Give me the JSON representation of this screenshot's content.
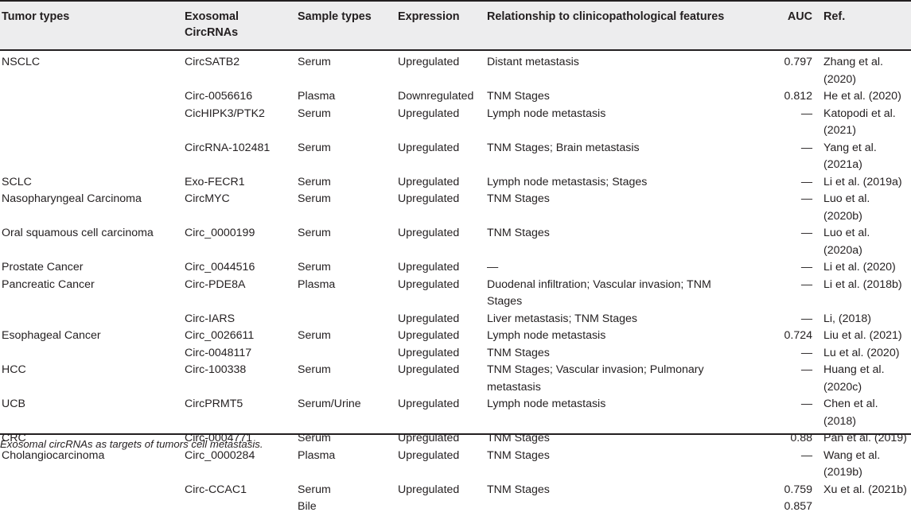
{
  "headers": {
    "tumor_types": "Tumor types",
    "exosomal_circrnas": "Exosomal CircRNAs",
    "sample_types": "Sample types",
    "expression": "Expression",
    "relationship": "Relationship to clinicopathological features",
    "auc": "AUC",
    "ref": "Ref."
  },
  "rows": [
    {
      "tumor": "NSCLC",
      "circ": "CircSATB2",
      "sample": "Serum",
      "expr": "Upregulated",
      "rel": "Distant metastasis",
      "auc": "0.797",
      "ref": "Zhang et al. (2020)"
    },
    {
      "tumor": "",
      "circ": "Circ-0056616",
      "sample": "Plasma",
      "expr": "Downregulated",
      "rel": "TNM Stages",
      "auc": "0.812",
      "ref": "He et al. (2020)"
    },
    {
      "tumor": "",
      "circ": "CicHIPK3/PTK2",
      "sample": "Serum",
      "expr": "Upregulated",
      "rel": "Lymph node metastasis",
      "auc": "—",
      "ref": "Katopodi et al. (2021)"
    },
    {
      "tumor": "",
      "circ": "CircRNA-102481",
      "sample": "Serum",
      "expr": "Upregulated",
      "rel": "TNM Stages; Brain metastasis",
      "auc": "—",
      "ref": "Yang et al. (2021a)"
    },
    {
      "tumor": "SCLC",
      "circ": "Exo-FECR1",
      "sample": "Serum",
      "expr": "Upregulated",
      "rel": "Lymph node metastasis; Stages",
      "auc": "—",
      "ref": "Li et al. (2019a)"
    },
    {
      "tumor": "Nasopharyngeal Carcinoma",
      "circ": "CircMYC",
      "sample": "Serum",
      "expr": "Upregulated",
      "rel": "TNM Stages",
      "auc": "—",
      "ref": "Luo et al. (2020b)"
    },
    {
      "tumor": "Oral squamous cell carcinoma",
      "circ": "Circ_0000199",
      "sample": "Serum",
      "expr": "Upregulated",
      "rel": "TNM Stages",
      "auc": "—",
      "ref": "Luo et al. (2020a)"
    },
    {
      "tumor": "Prostate Cancer",
      "circ": "Circ_0044516",
      "sample": "Serum",
      "expr": "Upregulated",
      "rel": "—",
      "auc": "—",
      "ref": "Li et al. (2020)"
    },
    {
      "tumor": "Pancreatic Cancer",
      "circ": "Circ-PDE8A",
      "sample": "Plasma",
      "expr": "Upregulated",
      "rel": "Duodenal infiltration; Vascular invasion; TNM Stages",
      "auc": "—",
      "ref": "Li et al. (2018b)"
    },
    {
      "tumor": "",
      "circ": "Circ-IARS",
      "sample": "",
      "expr": "Upregulated",
      "rel": "Liver metastasis; TNM Stages",
      "auc": "—",
      "ref": "Li, (2018)"
    },
    {
      "tumor": "Esophageal Cancer",
      "circ": "Circ_0026611",
      "sample": "Serum",
      "expr": "Upregulated",
      "rel": "Lymph node metastasis",
      "auc": "0.724",
      "ref": "Liu et al. (2021)"
    },
    {
      "tumor": "",
      "circ": "Circ-0048117",
      "sample": "",
      "expr": "Upregulated",
      "rel": "TNM Stages",
      "auc": "—",
      "ref": "Lu et al. (2020)"
    },
    {
      "tumor": "HCC",
      "circ": "Circ-100338",
      "sample": "Serum",
      "expr": "Upregulated",
      "rel": "TNM Stages; Vascular invasion; Pulmonary metastasis",
      "auc": "—",
      "ref": "Huang et al. (2020c)"
    },
    {
      "tumor": "UCB",
      "circ": "CircPRMT5",
      "sample": "Serum/Urine",
      "expr": "Upregulated",
      "rel": "Lymph node metastasis",
      "auc": "—",
      "ref": "Chen et al. (2018)"
    },
    {
      "tumor": "CRC",
      "circ": "Circ-0004771",
      "sample": "Serum",
      "expr": "Upregulated",
      "rel": "TNM Stages",
      "auc": "0.88",
      "ref": "Pan et al. (2019)"
    },
    {
      "tumor": "Cholangiocarcinoma",
      "circ": "Circ_0000284",
      "sample": "Plasma",
      "expr": "Upregulated",
      "rel": "TNM Stages",
      "auc": "—",
      "ref": "Wang et al. (2019b)"
    },
    {
      "tumor": "",
      "circ": "Circ-CCAC1",
      "sample": "Serum",
      "expr": "Upregulated",
      "rel": "TNM Stages",
      "auc": "0.759",
      "ref": "Xu et al. (2021b)"
    },
    {
      "tumor": "",
      "circ": "",
      "sample": "Bile",
      "expr": "",
      "rel": "",
      "auc": "0.857",
      "ref": ""
    }
  ],
  "caption": "Exosomal circRNAs as targets of tumors cell metastasis."
}
